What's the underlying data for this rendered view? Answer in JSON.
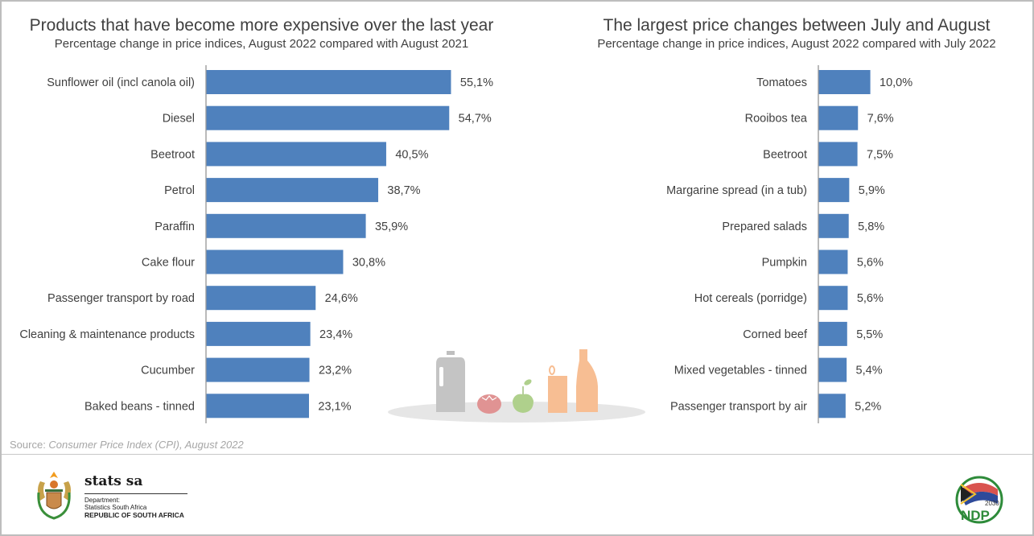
{
  "chart_data": [
    {
      "type": "bar",
      "orientation": "horizontal",
      "title": "Products that have become more expensive over the last year",
      "subtitle": "Percentage change in price indices, August 2022 compared with August 2021",
      "categories": [
        "Sunflower oil (incl canola oil)",
        "Diesel",
        "Beetroot",
        "Petrol",
        "Paraffin",
        "Cake flour",
        "Passenger transport by road",
        "Cleaning & maintenance products",
        "Cucumber",
        "Baked beans - tinned"
      ],
      "values": [
        55.1,
        54.7,
        40.5,
        38.7,
        35.9,
        30.8,
        24.6,
        23.4,
        23.2,
        23.1
      ],
      "data_labels": [
        "55,1%",
        "54,7%",
        "40,5%",
        "38,7%",
        "35,9%",
        "30,8%",
        "24,6%",
        "23,4%",
        "23,2%",
        "23,1%"
      ],
      "xlabel": "",
      "ylabel": "",
      "xlim": [
        0,
        60
      ],
      "grid": false,
      "legend": "none",
      "bar_color": "#4f81bd"
    },
    {
      "type": "bar",
      "orientation": "horizontal",
      "title": "The largest price changes between July and August",
      "subtitle": "Percentage change in price indices, August 2022 compared with July 2022",
      "categories": [
        "Tomatoes",
        "Rooibos tea",
        "Beetroot",
        "Margarine spread (in a tub)",
        "Prepared salads",
        "Pumpkin",
        "Hot cereals (porridge)",
        "Corned beef",
        "Mixed vegetables - tinned",
        "Passenger transport by air"
      ],
      "values": [
        10.0,
        7.6,
        7.5,
        5.9,
        5.8,
        5.6,
        5.6,
        5.5,
        5.4,
        5.2
      ],
      "data_labels": [
        "10,0%",
        "7,6%",
        "7,5%",
        "5,9%",
        "5,8%",
        "5,6%",
        "5,6%",
        "5,5%",
        "5,4%",
        "5,2%"
      ],
      "xlabel": "",
      "ylabel": "",
      "xlim": [
        0,
        40
      ],
      "grid": false,
      "legend": "none",
      "bar_color": "#4f81bd"
    }
  ],
  "footer": {
    "source_prefix": "Source: ",
    "source_text": "Consumer Price Index (CPI), August 2022",
    "org_name": "stats sa",
    "dept_line1": "Department:",
    "dept_line2": "Statistics South Africa",
    "dept_line3": "REPUBLIC OF SOUTH AFRICA",
    "ndp_label": "NDP",
    "ndp_year": "2030"
  },
  "icons": {
    "coat_of_arms": "coat-of-arms-icon",
    "ndp_logo": "ndp-2030-logo-icon",
    "illustration": [
      "milk-jug-icon",
      "tomato-icon",
      "apple-icon",
      "tin-can-icon",
      "bottle-icon"
    ]
  }
}
